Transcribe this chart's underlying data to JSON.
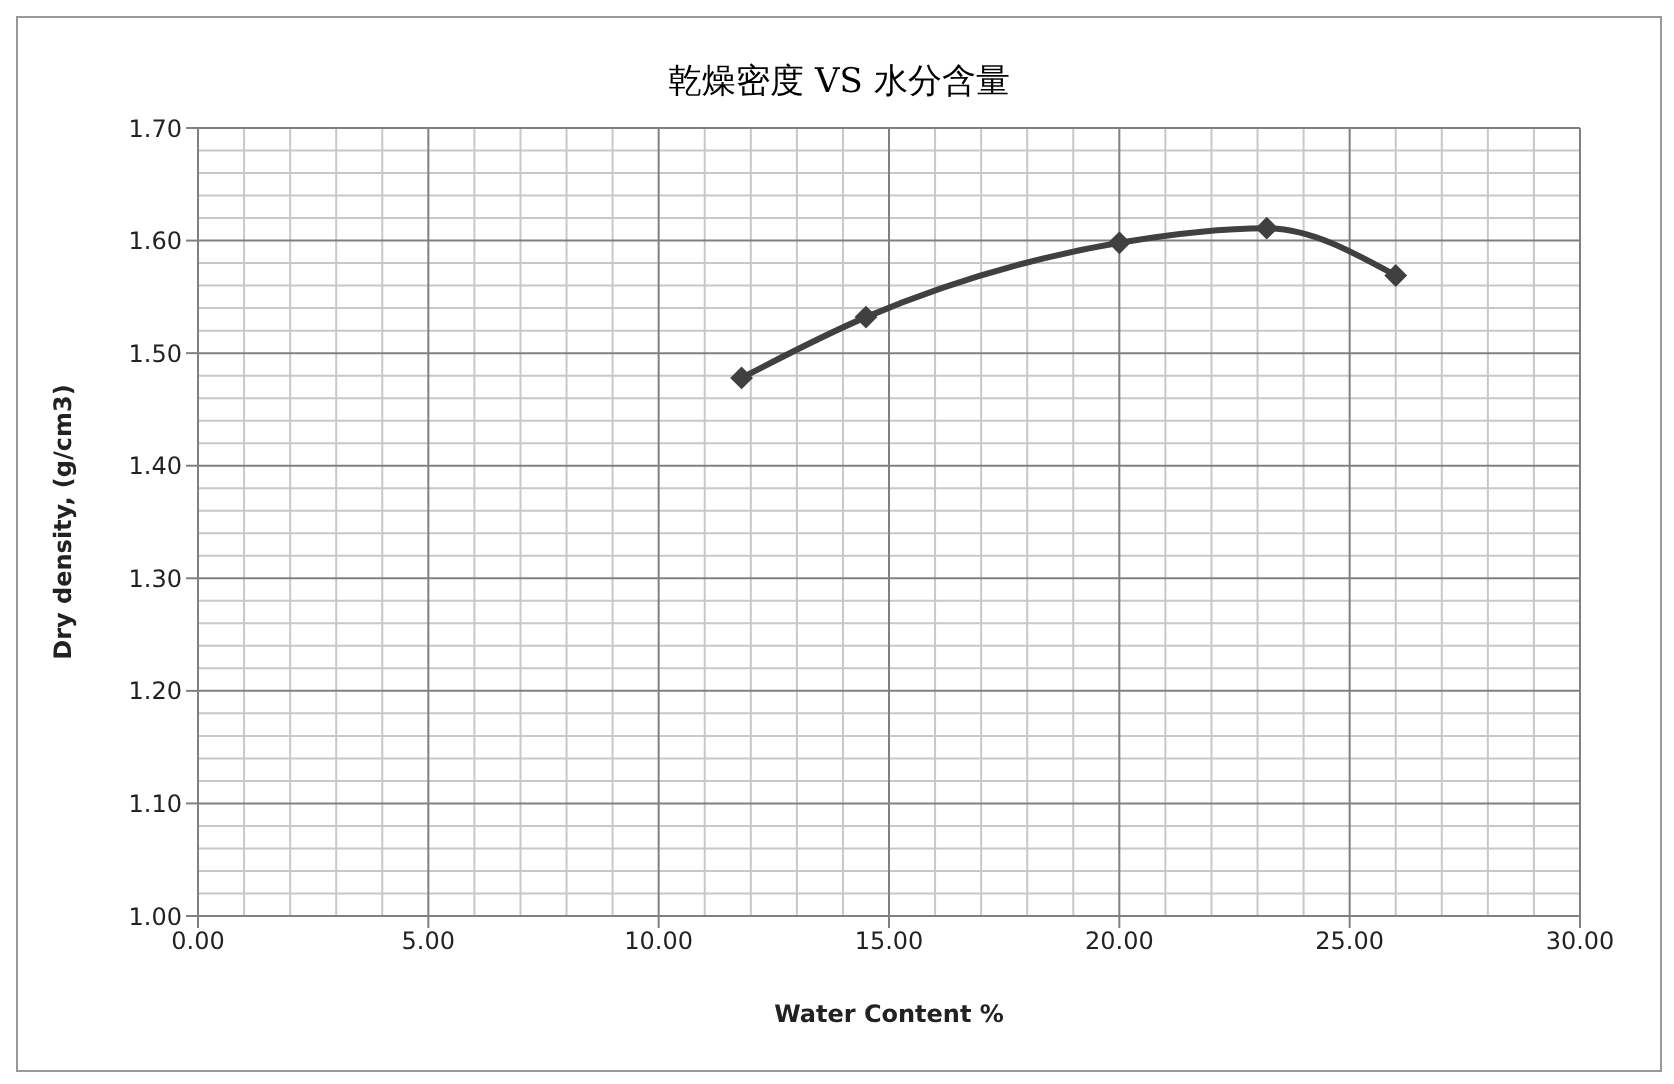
{
  "chart_data": {
    "type": "line",
    "title": "乾燥密度  VS  水分含量",
    "xlabel": "Water Content  %",
    "ylabel": "Dry density,  (g/cm3)",
    "x": [
      11.8,
      14.5,
      20.0,
      23.2,
      26.0
    ],
    "series": [
      {
        "color": "#404040",
        "values": [
          1.478,
          1.532,
          1.598,
          1.611,
          1.569
        ]
      }
    ],
    "xlim": [
      0,
      30
    ],
    "xticks": [
      {
        "value": 0,
        "label": "0.00"
      },
      {
        "value": 5,
        "label": "5.00"
      },
      {
        "value": 10,
        "label": "10.00"
      },
      {
        "value": 15,
        "label": "15.00"
      },
      {
        "value": 20,
        "label": "20.00"
      },
      {
        "value": 25,
        "label": "25.00"
      },
      {
        "value": 30,
        "label": "30.00"
      }
    ],
    "ylim": [
      1.0,
      1.7
    ],
    "yticks": [
      {
        "value": 1.0,
        "label": "1.00"
      },
      {
        "value": 1.1,
        "label": "1.10"
      },
      {
        "value": 1.2,
        "label": "1.20"
      },
      {
        "value": 1.3,
        "label": "1.30"
      },
      {
        "value": 1.4,
        "label": "1.40"
      },
      {
        "value": 1.5,
        "label": "1.50"
      },
      {
        "value": 1.6,
        "label": "1.60"
      },
      {
        "value": 1.7,
        "label": "1.70"
      }
    ],
    "grid": true,
    "marker": "diamond",
    "line_style": "solid",
    "legend": false
  }
}
